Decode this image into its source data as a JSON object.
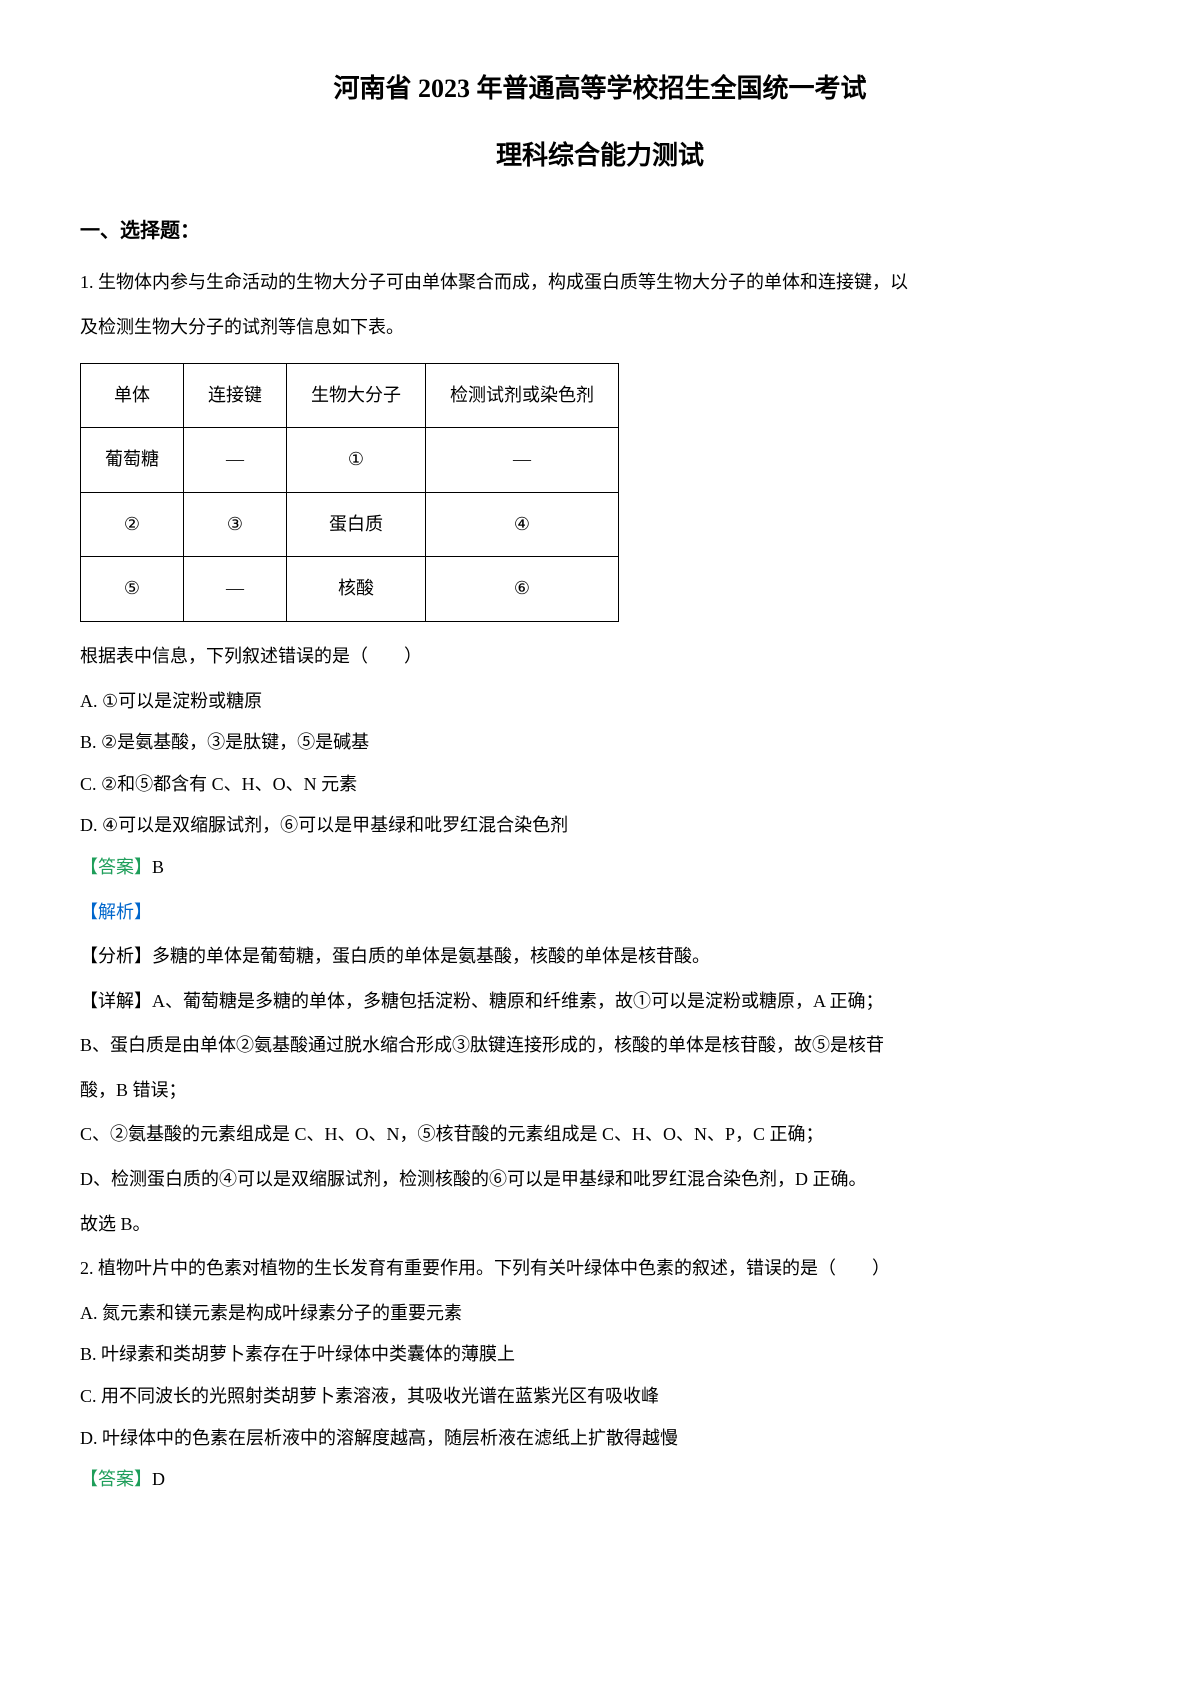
{
  "title_main": "河南省 2023 年普通高等学校招生全国统一考试",
  "title_sub": "理科综合能力测试",
  "section_heading": "一、选择题：",
  "q1": {
    "intro1": "1. 生物体内参与生命活动的生物大分子可由单体聚合而成，构成蛋白质等生物大分子的单体和连接键，以",
    "intro2": "及检测生物大分子的试剂等信息如下表。",
    "table": {
      "headers": [
        "单体",
        "连接键",
        "生物大分子",
        "检测试剂或染色剂"
      ],
      "rows": [
        [
          "葡萄糖",
          "—",
          "①",
          "—"
        ],
        [
          "②",
          "③",
          "蛋白质",
          "④"
        ],
        [
          "⑤",
          "—",
          "核酸",
          "⑥"
        ]
      ]
    },
    "prompt": "根据表中信息，下列叙述错误的是（　　）",
    "options": {
      "A": "A. ①可以是淀粉或糖原",
      "B": "B. ②是氨基酸，③是肽键，⑤是碱基",
      "C": "C. ②和⑤都含有 C、H、O、N 元素",
      "D": "D. ④可以是双缩脲试剂，⑥可以是甲基绿和吡罗红混合染色剂"
    },
    "answer_label": "【答案】",
    "answer_value": "B",
    "analysis_label": "【解析】",
    "analysis": {
      "p1": "【分析】多糖的单体是葡萄糖，蛋白质的单体是氨基酸，核酸的单体是核苷酸。",
      "p2": "【详解】A、葡萄糖是多糖的单体，多糖包括淀粉、糖原和纤维素，故①可以是淀粉或糖原，A 正确；",
      "p3": "B、蛋白质是由单体②氨基酸通过脱水缩合形成③肽键连接形成的，核酸的单体是核苷酸，故⑤是核苷",
      "p4": "酸，B 错误；",
      "p5": "C、②氨基酸的元素组成是 C、H、O、N，⑤核苷酸的元素组成是 C、H、O、N、P，C 正确；",
      "p6": "D、检测蛋白质的④可以是双缩脲试剂，检测核酸的⑥可以是甲基绿和吡罗红混合染色剂，D 正确。",
      "p7": "故选 B。"
    }
  },
  "q2": {
    "intro": "2. 植物叶片中的色素对植物的生长发育有重要作用。下列有关叶绿体中色素的叙述，错误的是（　　）",
    "options": {
      "A": "A. 氮元素和镁元素是构成叶绿素分子的重要元素",
      "B": "B. 叶绿素和类胡萝卜素存在于叶绿体中类囊体的薄膜上",
      "C": "C. 用不同波长的光照射类胡萝卜素溶液，其吸收光谱在蓝紫光区有吸收峰",
      "D": "D. 叶绿体中的色素在层析液中的溶解度越高，随层析液在滤纸上扩散得越慢"
    },
    "answer_label": "【答案】",
    "answer_value": "D"
  }
}
